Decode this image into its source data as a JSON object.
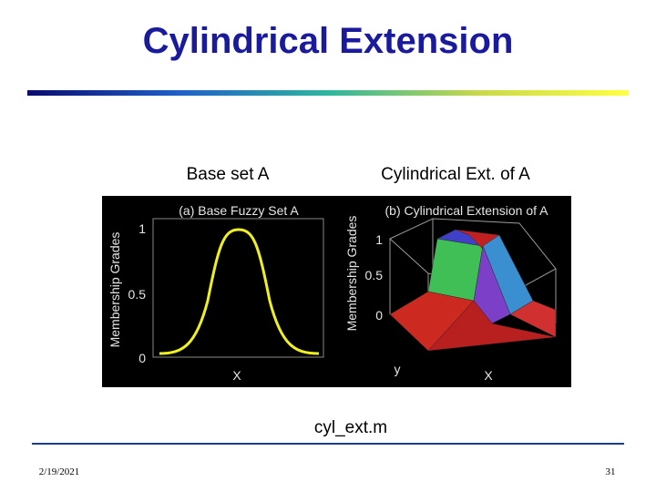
{
  "header": {
    "title": "Cylindrical Extension"
  },
  "captions": [
    "Base set A",
    "Cylindrical Ext. of A"
  ],
  "figure": {
    "panel_a": {
      "title": "(a) Base Fuzzy Set A",
      "ylabel": "Membership Grades",
      "yticks": [
        "1",
        "0.5",
        "0"
      ],
      "xlabel": "X"
    },
    "panel_b": {
      "title": "(b) Cylindrical Extension of A",
      "ylabel": "Membership Grades",
      "zticks": [
        "1",
        "0.5",
        "0"
      ],
      "axis_labels": [
        "y",
        "X"
      ]
    }
  },
  "file": "cyl_ext.m",
  "footer": {
    "date": "2/19/2021",
    "page": "31"
  }
}
